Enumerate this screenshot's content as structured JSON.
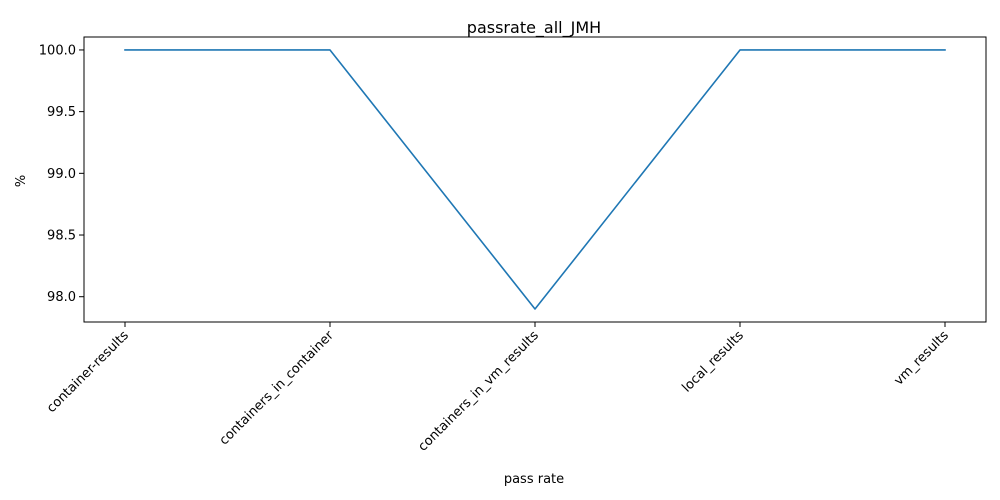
{
  "chart_data": {
    "type": "line",
    "title": "passrate_all_JMH",
    "xlabel": "pass rate",
    "ylabel": "%",
    "categories": [
      "container-results",
      "containers_in_container",
      "containers_in_vm_results",
      "local_results",
      "vm_results"
    ],
    "series": [
      {
        "values": [
          100.0,
          100.0,
          97.9,
          100.0,
          100.0
        ],
        "color": "#1f77b4"
      }
    ],
    "ylim": [
      97.795,
      100.105
    ],
    "yticks": [
      98.0,
      98.5,
      99.0,
      99.5,
      100.0
    ],
    "ytick_labels": [
      "98.0",
      "98.5",
      "99.0",
      "99.5",
      "100.0"
    ],
    "grid": false,
    "legend": "none"
  }
}
